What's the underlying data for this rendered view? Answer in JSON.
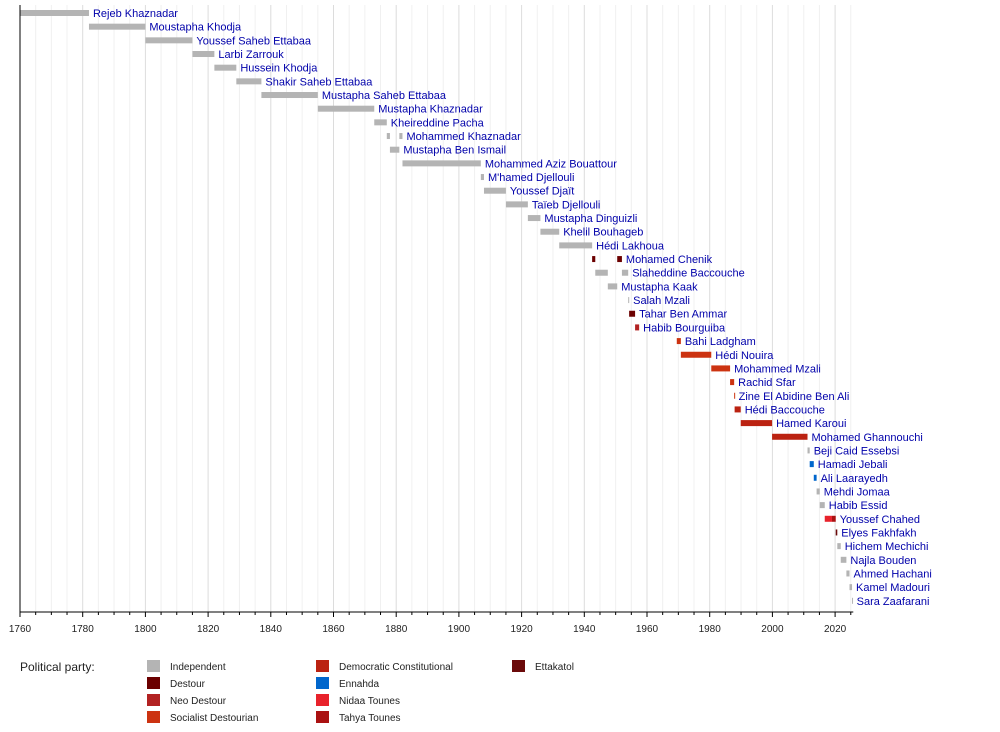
{
  "chart_data": {
    "type": "timeline",
    "xlim": [
      1760,
      2025
    ],
    "x_ticks": [
      1760,
      1780,
      1800,
      1820,
      1840,
      1860,
      1880,
      1900,
      1920,
      1940,
      1960,
      1980,
      2000,
      2020
    ],
    "grid": "vertical, every 5 years",
    "legend_title": "Political party:",
    "legend_placement": "bottom",
    "parties": [
      {
        "name": "Independent",
        "color": "#b4b4b4"
      },
      {
        "name": "Destour",
        "color": "#6b0000"
      },
      {
        "name": "Neo Destour",
        "color": "#b22222"
      },
      {
        "name": "Socialist Destourian",
        "color": "#cc3311"
      },
      {
        "name": "Democratic Constitutional",
        "color": "#bb2211"
      },
      {
        "name": "Ennahda",
        "color": "#0066cc"
      },
      {
        "name": "Nidaa Tounes",
        "color": "#e8222b"
      },
      {
        "name": "Tahya Tounes",
        "color": "#aa1111"
      },
      {
        "name": "Ettakatol",
        "color": "#6b0a0a"
      }
    ],
    "rows": [
      {
        "name": "Rejeb Khaznadar",
        "terms": [
          [
            1760,
            1782,
            "Independent"
          ]
        ]
      },
      {
        "name": "Moustapha Khodja",
        "terms": [
          [
            1782,
            1800,
            "Independent"
          ]
        ]
      },
      {
        "name": "Youssef Saheb Ettabaa",
        "terms": [
          [
            1800,
            1815,
            "Independent"
          ]
        ]
      },
      {
        "name": "Larbi Zarrouk",
        "terms": [
          [
            1815,
            1822,
            "Independent"
          ]
        ]
      },
      {
        "name": "Hussein Khodja",
        "terms": [
          [
            1822,
            1829,
            "Independent"
          ]
        ]
      },
      {
        "name": "Shakir Saheb Ettabaa",
        "terms": [
          [
            1829,
            1837,
            "Independent"
          ]
        ]
      },
      {
        "name": "Mustapha Saheb Ettabaa",
        "terms": [
          [
            1837,
            1855,
            "Independent"
          ]
        ]
      },
      {
        "name": "Mustapha Khaznadar",
        "terms": [
          [
            1855,
            1873,
            "Independent"
          ]
        ]
      },
      {
        "name": "Kheireddine Pacha",
        "terms": [
          [
            1873,
            1877,
            "Independent"
          ]
        ]
      },
      {
        "name": "Mohammed Khaznadar",
        "terms": [
          [
            1877,
            1878,
            "Independent"
          ],
          [
            1881,
            1882,
            "Independent"
          ]
        ]
      },
      {
        "name": "Mustapha Ben Ismail",
        "terms": [
          [
            1878,
            1881,
            "Independent"
          ]
        ]
      },
      {
        "name": "Mohammed Aziz Bouattour",
        "terms": [
          [
            1882,
            1907,
            "Independent"
          ]
        ]
      },
      {
        "name": "M'hamed Djellouli",
        "terms": [
          [
            1907,
            1908,
            "Independent"
          ]
        ]
      },
      {
        "name": "Youssef Djaït",
        "terms": [
          [
            1908,
            1915,
            "Independent"
          ]
        ]
      },
      {
        "name": "Taïeb Djellouli",
        "terms": [
          [
            1915,
            1922,
            "Independent"
          ]
        ]
      },
      {
        "name": "Mustapha Dinguizli",
        "terms": [
          [
            1922,
            1926,
            "Independent"
          ]
        ]
      },
      {
        "name": "Khelil Bouhageb",
        "terms": [
          [
            1926,
            1932,
            "Independent"
          ]
        ]
      },
      {
        "name": "Hédi Lakhoua",
        "terms": [
          [
            1932,
            1942.5,
            "Independent"
          ]
        ]
      },
      {
        "name": "Mohamed Chenik",
        "terms": [
          [
            1942.5,
            1943.5,
            "Destour"
          ],
          [
            1950.5,
            1952,
            "Destour"
          ]
        ]
      },
      {
        "name": "Slaheddine Baccouche",
        "terms": [
          [
            1943.5,
            1947.5,
            "Independent"
          ],
          [
            1952,
            1954,
            "Independent"
          ]
        ]
      },
      {
        "name": "Mustapha Kaak",
        "terms": [
          [
            1947.5,
            1950.5,
            "Independent"
          ]
        ]
      },
      {
        "name": "Salah Mzali",
        "terms": [
          [
            1954,
            1954.3,
            "Independent"
          ]
        ]
      },
      {
        "name": "Tahar Ben Ammar",
        "terms": [
          [
            1954.3,
            1956.2,
            "Destour"
          ]
        ]
      },
      {
        "name": "Habib Bourguiba",
        "terms": [
          [
            1956.2,
            1957.5,
            "Neo Destour"
          ]
        ]
      },
      {
        "name": "Bahi Ladgham",
        "terms": [
          [
            1969.5,
            1970.8,
            "Socialist Destourian"
          ]
        ]
      },
      {
        "name": "Hédi Nouira",
        "terms": [
          [
            1970.8,
            1980.5,
            "Socialist Destourian"
          ]
        ]
      },
      {
        "name": "Mohammed Mzali",
        "terms": [
          [
            1980.5,
            1986.5,
            "Socialist Destourian"
          ]
        ]
      },
      {
        "name": "Rachid Sfar",
        "terms": [
          [
            1986.5,
            1987.8,
            "Socialist Destourian"
          ]
        ]
      },
      {
        "name": "Zine El Abidine Ben Ali",
        "terms": [
          [
            1987.8,
            1987.95,
            "Socialist Destourian"
          ]
        ]
      },
      {
        "name": "Hédi Baccouche",
        "terms": [
          [
            1987.95,
            1989.9,
            "Democratic Constitutional"
          ]
        ]
      },
      {
        "name": "Hamed Karoui",
        "terms": [
          [
            1989.9,
            1999.9,
            "Democratic Constitutional"
          ]
        ]
      },
      {
        "name": "Mohamed Ghannouchi",
        "terms": [
          [
            1999.9,
            2011.2,
            "Democratic Constitutional"
          ]
        ]
      },
      {
        "name": "Beji Caid Essebsi",
        "terms": [
          [
            2011.2,
            2011.9,
            "Independent"
          ]
        ]
      },
      {
        "name": "Hamadi Jebali",
        "terms": [
          [
            2011.9,
            2013.2,
            "Ennahda"
          ]
        ]
      },
      {
        "name": "Ali Laarayedh",
        "terms": [
          [
            2013.2,
            2014.1,
            "Ennahda"
          ]
        ]
      },
      {
        "name": "Mehdi Jomaa",
        "terms": [
          [
            2014.1,
            2015.1,
            "Independent"
          ]
        ]
      },
      {
        "name": "Habib Essid",
        "terms": [
          [
            2015.1,
            2016.7,
            "Independent"
          ]
        ]
      },
      {
        "name": "Youssef Chahed",
        "terms": [
          [
            2016.7,
            2019,
            "Nidaa Tounes"
          ],
          [
            2019,
            2020.2,
            "Tahya Tounes"
          ]
        ]
      },
      {
        "name": "Elyes Fakhfakh",
        "terms": [
          [
            2020.2,
            2020.7,
            "Ettakatol"
          ]
        ]
      },
      {
        "name": "Hichem Mechichi",
        "terms": [
          [
            2020.7,
            2021.8,
            "Independent"
          ]
        ]
      },
      {
        "name": "Najla Bouden",
        "terms": [
          [
            2021.8,
            2023.6,
            "Independent"
          ]
        ]
      },
      {
        "name": "Ahmed Hachani",
        "terms": [
          [
            2023.6,
            2024.6,
            "Independent"
          ]
        ]
      },
      {
        "name": "Kamel Madouri",
        "terms": [
          [
            2024.6,
            2025.4,
            "Independent"
          ]
        ]
      },
      {
        "name": "Sara Zaafarani",
        "terms": [
          [
            2025.4,
            2025.6,
            "Independent"
          ]
        ]
      }
    ]
  }
}
